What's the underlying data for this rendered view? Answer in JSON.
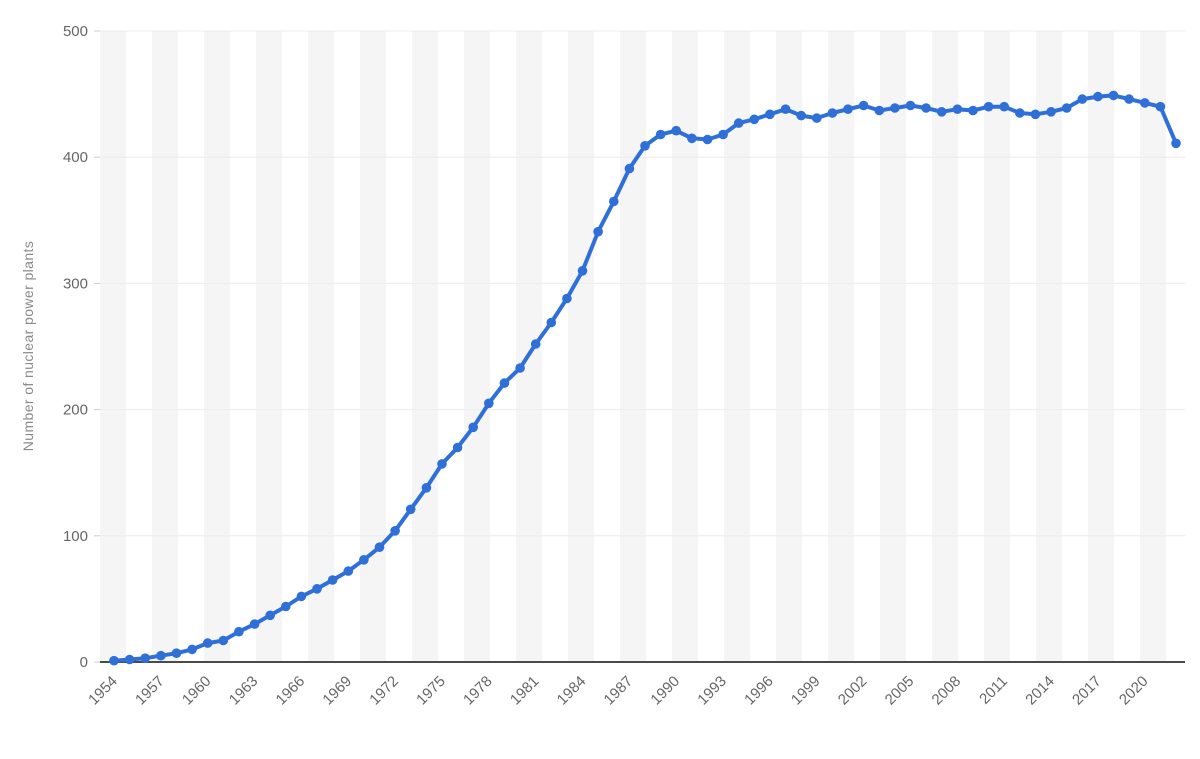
{
  "chart_data": {
    "type": "line",
    "title": "",
    "xlabel": "",
    "ylabel": "Number of nuclear power plants",
    "ylim": [
      0,
      500
    ],
    "yticks": [
      0,
      100,
      200,
      300,
      400,
      500
    ],
    "x_tick_interval": 3,
    "legend_position": "none",
    "grid": "faint horizontal lines at 100s, alternating light vertical bands",
    "categories": [
      1954,
      1955,
      1956,
      1957,
      1958,
      1959,
      1960,
      1961,
      1962,
      1963,
      1964,
      1965,
      1966,
      1967,
      1968,
      1969,
      1970,
      1971,
      1972,
      1973,
      1974,
      1975,
      1976,
      1977,
      1978,
      1979,
      1980,
      1981,
      1982,
      1983,
      1984,
      1985,
      1986,
      1987,
      1988,
      1989,
      1990,
      1991,
      1992,
      1993,
      1994,
      1995,
      1996,
      1997,
      1998,
      1999,
      2000,
      2001,
      2002,
      2003,
      2004,
      2005,
      2006,
      2007,
      2008,
      2009,
      2010,
      2011,
      2012,
      2013,
      2014,
      2015,
      2016,
      2017,
      2018,
      2019,
      2020,
      2021,
      2022
    ],
    "series": [
      {
        "name": "Number of nuclear power plants",
        "color": "#2e6fd8",
        "values": [
          1,
          2,
          3,
          5,
          7,
          10,
          15,
          17,
          24,
          30,
          37,
          44,
          52,
          58,
          65,
          72,
          81,
          91,
          104,
          121,
          138,
          157,
          170,
          186,
          205,
          221,
          233,
          252,
          269,
          288,
          310,
          341,
          365,
          391,
          409,
          418,
          421,
          415,
          414,
          418,
          427,
          430,
          434,
          438,
          433,
          431,
          435,
          438,
          441,
          437,
          439,
          441,
          439,
          436,
          438,
          437,
          440,
          440,
          435,
          434,
          436,
          439,
          446,
          448,
          449,
          446,
          443,
          440,
          411
        ]
      }
    ],
    "x_tick_labels": [
      "1954",
      "1957",
      "1960",
      "1963",
      "1966",
      "1969",
      "1972",
      "1975",
      "1978",
      "1981",
      "1984",
      "1987",
      "1990",
      "1993",
      "1996",
      "1999",
      "2002",
      "2005",
      "2008",
      "2011",
      "2014",
      "2017",
      "2020"
    ],
    "y_tick_labels": [
      "0",
      "100",
      "200",
      "300",
      "400",
      "500"
    ]
  },
  "colors": {
    "line": "#2e6fd8",
    "band": "#f5f5f5",
    "axis_line": "#4a4a4a",
    "gridline": "#ececec",
    "tick_mark": "#cccccc",
    "tick_label": "#666666",
    "axis_title": "#8a8a8a",
    "background": "#ffffff"
  }
}
